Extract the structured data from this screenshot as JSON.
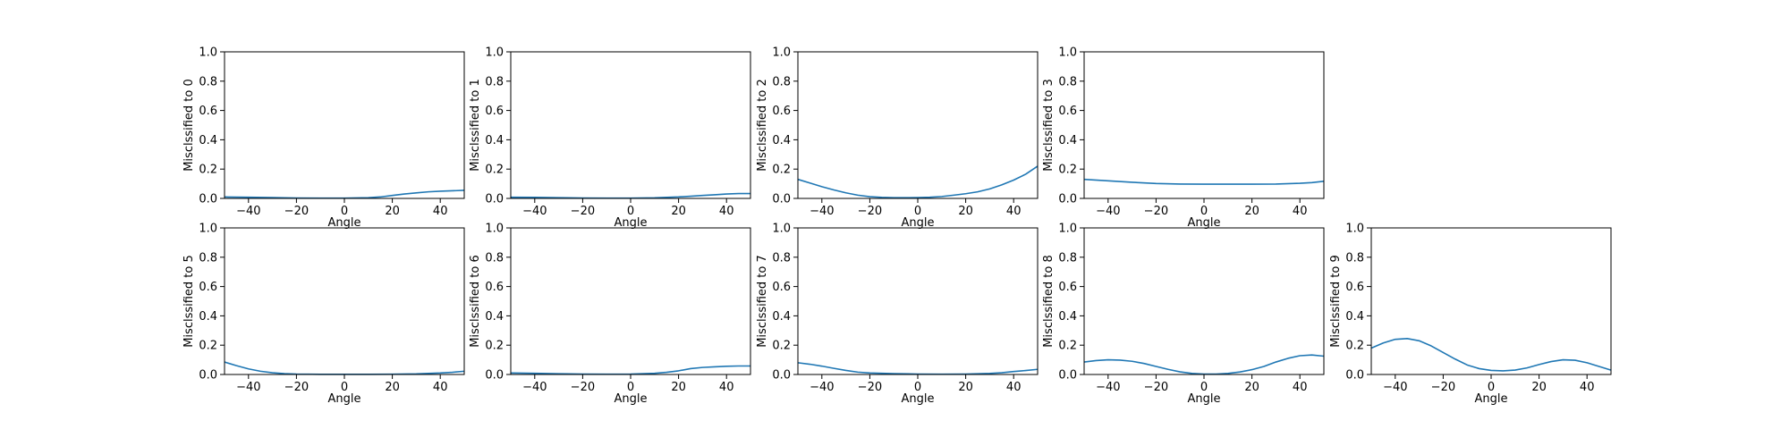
{
  "figure": {
    "colors": {
      "line": "#1f77b4",
      "axis": "#000000",
      "background": "#ffffff"
    }
  },
  "chart_data": [
    {
      "type": "line",
      "name": "misclassified-to-0",
      "xlabel": "Angle",
      "ylabel": "Misclssified to 0",
      "xlim": [
        -50,
        50
      ],
      "ylim": [
        0.0,
        1.0
      ],
      "xticks": [
        -40,
        -20,
        0,
        20,
        40
      ],
      "xtick_labels": [
        "−40",
        "−20",
        "0",
        "20",
        "40"
      ],
      "yticks": [
        0.0,
        0.2,
        0.4,
        0.6,
        0.8,
        1.0
      ],
      "ytick_labels": [
        "0.0",
        "0.2",
        "0.4",
        "0.6",
        "0.8",
        "1.0"
      ],
      "x": [
        -50,
        -40,
        -30,
        -20,
        -10,
        0,
        10,
        15,
        20,
        25,
        30,
        35,
        40,
        45,
        50
      ],
      "y": [
        0.01,
        0.008,
        0.006,
        0.003,
        0.002,
        0.002,
        0.005,
        0.01,
        0.02,
        0.03,
        0.038,
        0.045,
        0.049,
        0.052,
        0.055
      ]
    },
    {
      "type": "line",
      "name": "misclassified-to-1",
      "xlabel": "Angle",
      "ylabel": "Misclssified to 1",
      "xlim": [
        -50,
        50
      ],
      "ylim": [
        0.0,
        1.0
      ],
      "xticks": [
        -40,
        -20,
        0,
        20,
        40
      ],
      "xtick_labels": [
        "−40",
        "−20",
        "0",
        "20",
        "40"
      ],
      "yticks": [
        0.0,
        0.2,
        0.4,
        0.6,
        0.8,
        1.0
      ],
      "ytick_labels": [
        "0.0",
        "0.2",
        "0.4",
        "0.6",
        "0.8",
        "1.0"
      ],
      "x": [
        -50,
        -40,
        -30,
        -20,
        -10,
        0,
        10,
        20,
        25,
        30,
        35,
        40,
        45,
        50
      ],
      "y": [
        0.008,
        0.007,
        0.005,
        0.003,
        0.002,
        0.002,
        0.004,
        0.01,
        0.015,
        0.02,
        0.025,
        0.03,
        0.033,
        0.033
      ]
    },
    {
      "type": "line",
      "name": "misclassified-to-2",
      "xlabel": "Angle",
      "ylabel": "Misclssified to 2",
      "xlim": [
        -50,
        50
      ],
      "ylim": [
        0.0,
        1.0
      ],
      "xticks": [
        -40,
        -20,
        0,
        20,
        40
      ],
      "xtick_labels": [
        "−40",
        "−20",
        "0",
        "20",
        "40"
      ],
      "yticks": [
        0.0,
        0.2,
        0.4,
        0.6,
        0.8,
        1.0
      ],
      "ytick_labels": [
        "0.0",
        "0.2",
        "0.4",
        "0.6",
        "0.8",
        "1.0"
      ],
      "x": [
        -50,
        -45,
        -40,
        -35,
        -30,
        -25,
        -20,
        -15,
        -10,
        -5,
        0,
        5,
        10,
        15,
        20,
        25,
        30,
        35,
        40,
        45,
        50
      ],
      "y": [
        0.13,
        0.105,
        0.08,
        0.058,
        0.038,
        0.022,
        0.012,
        0.007,
        0.005,
        0.005,
        0.006,
        0.008,
        0.013,
        0.022,
        0.032,
        0.045,
        0.065,
        0.092,
        0.125,
        0.165,
        0.22
      ]
    },
    {
      "type": "line",
      "name": "misclassified-to-3",
      "xlabel": "Angle",
      "ylabel": "Misclssified to 3",
      "xlim": [
        -50,
        50
      ],
      "ylim": [
        0.0,
        1.0
      ],
      "xticks": [
        -40,
        -20,
        0,
        20,
        40
      ],
      "xtick_labels": [
        "−40",
        "−20",
        "0",
        "20",
        "40"
      ],
      "yticks": [
        0.0,
        0.2,
        0.4,
        0.6,
        0.8,
        1.0
      ],
      "ytick_labels": [
        "0.0",
        "0.2",
        "0.4",
        "0.6",
        "0.8",
        "1.0"
      ],
      "x": [
        -50,
        -40,
        -30,
        -20,
        -10,
        0,
        10,
        20,
        30,
        40,
        45,
        50
      ],
      "y": [
        0.13,
        0.12,
        0.11,
        0.102,
        0.098,
        0.097,
        0.097,
        0.097,
        0.098,
        0.103,
        0.108,
        0.117
      ]
    },
    {
      "type": "line",
      "name": "misclassified-to-5",
      "xlabel": "Angle",
      "ylabel": "Misclssified to 5",
      "xlim": [
        -50,
        50
      ],
      "ylim": [
        0.0,
        1.0
      ],
      "xticks": [
        -40,
        -20,
        0,
        20,
        40
      ],
      "xtick_labels": [
        "−40",
        "−20",
        "0",
        "20",
        "40"
      ],
      "yticks": [
        0.0,
        0.2,
        0.4,
        0.6,
        0.8,
        1.0
      ],
      "ytick_labels": [
        "0.0",
        "0.2",
        "0.4",
        "0.6",
        "0.8",
        "1.0"
      ],
      "x": [
        -50,
        -45,
        -40,
        -35,
        -30,
        -25,
        -20,
        -10,
        0,
        10,
        20,
        30,
        35,
        40,
        45,
        50
      ],
      "y": [
        0.085,
        0.06,
        0.038,
        0.022,
        0.012,
        0.006,
        0.003,
        0.001,
        0.001,
        0.001,
        0.002,
        0.004,
        0.007,
        0.01,
        0.015,
        0.022
      ]
    },
    {
      "type": "line",
      "name": "misclassified-to-6",
      "xlabel": "Angle",
      "ylabel": "Misclssified to 6",
      "xlim": [
        -50,
        50
      ],
      "ylim": [
        0.0,
        1.0
      ],
      "xticks": [
        -40,
        -20,
        0,
        20,
        40
      ],
      "xtick_labels": [
        "−40",
        "−20",
        "0",
        "20",
        "40"
      ],
      "yticks": [
        0.0,
        0.2,
        0.4,
        0.6,
        0.8,
        1.0
      ],
      "ytick_labels": [
        "0.0",
        "0.2",
        "0.4",
        "0.6",
        "0.8",
        "1.0"
      ],
      "x": [
        -50,
        -40,
        -30,
        -20,
        -10,
        0,
        10,
        15,
        20,
        25,
        30,
        35,
        40,
        45,
        50
      ],
      "y": [
        0.01,
        0.008,
        0.005,
        0.003,
        0.002,
        0.003,
        0.008,
        0.015,
        0.025,
        0.04,
        0.048,
        0.052,
        0.056,
        0.058,
        0.058
      ]
    },
    {
      "type": "line",
      "name": "misclassified-to-7",
      "xlabel": "Angle",
      "ylabel": "Misclssified to 7",
      "xlim": [
        -50,
        50
      ],
      "ylim": [
        0.0,
        1.0
      ],
      "xticks": [
        -40,
        -20,
        0,
        20,
        40
      ],
      "xtick_labels": [
        "−40",
        "−20",
        "0",
        "20",
        "40"
      ],
      "yticks": [
        0.0,
        0.2,
        0.4,
        0.6,
        0.8,
        1.0
      ],
      "ytick_labels": [
        "0.0",
        "0.2",
        "0.4",
        "0.6",
        "0.8",
        "1.0"
      ],
      "x": [
        -50,
        -45,
        -40,
        -35,
        -30,
        -25,
        -20,
        -10,
        0,
        10,
        20,
        30,
        35,
        40,
        45,
        50
      ],
      "y": [
        0.08,
        0.07,
        0.057,
        0.042,
        0.028,
        0.016,
        0.01,
        0.006,
        0.003,
        0.002,
        0.003,
        0.007,
        0.012,
        0.02,
        0.027,
        0.035
      ]
    },
    {
      "type": "line",
      "name": "misclassified-to-8",
      "xlabel": "Angle",
      "ylabel": "Misclssified to 8",
      "xlim": [
        -50,
        50
      ],
      "ylim": [
        0.0,
        1.0
      ],
      "xticks": [
        -40,
        -20,
        0,
        20,
        40
      ],
      "xtick_labels": [
        "−40",
        "−20",
        "0",
        "20",
        "40"
      ],
      "yticks": [
        0.0,
        0.2,
        0.4,
        0.6,
        0.8,
        1.0
      ],
      "ytick_labels": [
        "0.0",
        "0.2",
        "0.4",
        "0.6",
        "0.8",
        "1.0"
      ],
      "x": [
        -50,
        -45,
        -40,
        -35,
        -30,
        -25,
        -20,
        -15,
        -10,
        -5,
        0,
        5,
        10,
        15,
        20,
        25,
        30,
        35,
        40,
        45,
        50
      ],
      "y": [
        0.085,
        0.095,
        0.1,
        0.098,
        0.09,
        0.075,
        0.055,
        0.035,
        0.018,
        0.007,
        0.003,
        0.003,
        0.007,
        0.017,
        0.033,
        0.055,
        0.085,
        0.11,
        0.128,
        0.133,
        0.125
      ]
    },
    {
      "type": "line",
      "name": "misclassified-to-9",
      "xlabel": "Angle",
      "ylabel": "Misclssified to 9",
      "xlim": [
        -50,
        50
      ],
      "ylim": [
        0.0,
        1.0
      ],
      "xticks": [
        -40,
        -20,
        0,
        20,
        40
      ],
      "xtick_labels": [
        "−40",
        "−20",
        "0",
        "20",
        "40"
      ],
      "yticks": [
        0.0,
        0.2,
        0.4,
        0.6,
        0.8,
        1.0
      ],
      "ytick_labels": [
        "0.0",
        "0.2",
        "0.4",
        "0.6",
        "0.8",
        "1.0"
      ],
      "x": [
        -50,
        -45,
        -40,
        -35,
        -30,
        -25,
        -20,
        -15,
        -10,
        -5,
        0,
        5,
        10,
        15,
        20,
        25,
        30,
        35,
        40,
        45,
        50
      ],
      "y": [
        0.18,
        0.215,
        0.24,
        0.245,
        0.23,
        0.195,
        0.15,
        0.105,
        0.065,
        0.04,
        0.028,
        0.025,
        0.03,
        0.045,
        0.068,
        0.088,
        0.1,
        0.097,
        0.08,
        0.055,
        0.03
      ]
    }
  ]
}
